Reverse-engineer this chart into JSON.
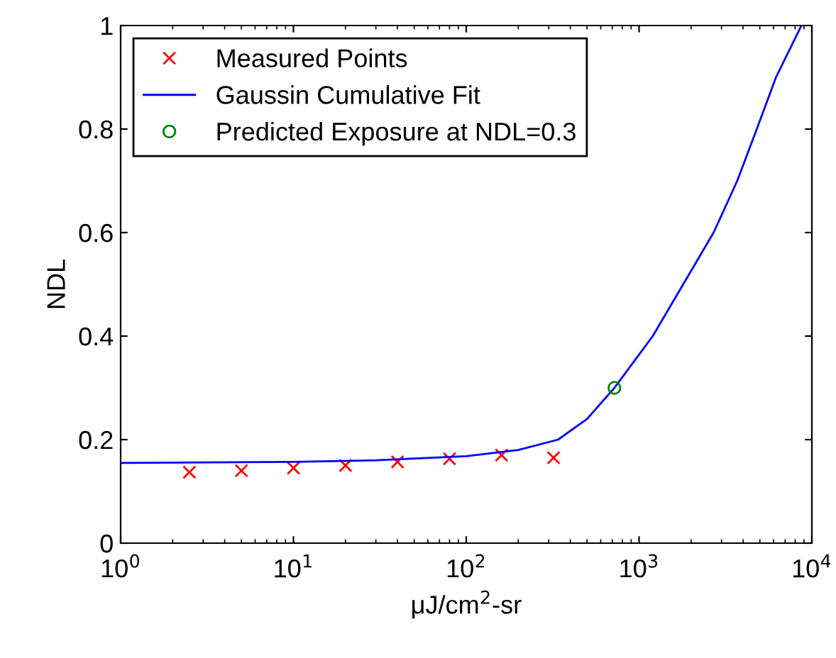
{
  "chart_data": {
    "type": "scatter",
    "xlabel": "μJ/cm$^{2}$-sr",
    "ylabel": "NDL",
    "log": "x",
    "xlim": [
      1,
      10000
    ],
    "xticks": [
      {
        "value": 1,
        "label": "10$^{0}$"
      },
      {
        "value": 10,
        "label": "10$^{1}$"
      },
      {
        "value": 100,
        "label": "10$^{2}$"
      },
      {
        "value": 1000,
        "label": "10$^{3}$"
      },
      {
        "value": 10000,
        "label": "10$^{4}$"
      }
    ],
    "ylim": [
      0,
      1
    ],
    "yticks": [
      0,
      0.2,
      0.4,
      0.6,
      0.8,
      1
    ],
    "grid": false,
    "legend": "top left",
    "series": [
      {
        "name": "Measured Points",
        "marker": "cross",
        "color": "#ff0000",
        "x": [
          2.5,
          5,
          10,
          20,
          40,
          80,
          160,
          320
        ],
        "values": [
          0.137,
          0.14,
          0.145,
          0.15,
          0.157,
          0.163,
          0.17,
          0.165
        ]
      },
      {
        "name": "Gaussin Cumulative Fit",
        "type": "line",
        "marker": "none",
        "line_style": "solid",
        "color": "#0000ff",
        "x": [
          1,
          10,
          30,
          100,
          200,
          340,
          500,
          720,
          1200,
          1800,
          2700,
          3700,
          4800,
          6200,
          8700
        ],
        "values": [
          0.155,
          0.157,
          0.16,
          0.168,
          0.18,
          0.2,
          0.24,
          0.3,
          0.4,
          0.5,
          0.6,
          0.7,
          0.8,
          0.9,
          1.0
        ]
      },
      {
        "name": "Predicted Exposure at NDL=0.3",
        "marker": "circle",
        "color": "#008000",
        "x": [
          720
        ],
        "values": [
          0.3
        ]
      }
    ]
  }
}
